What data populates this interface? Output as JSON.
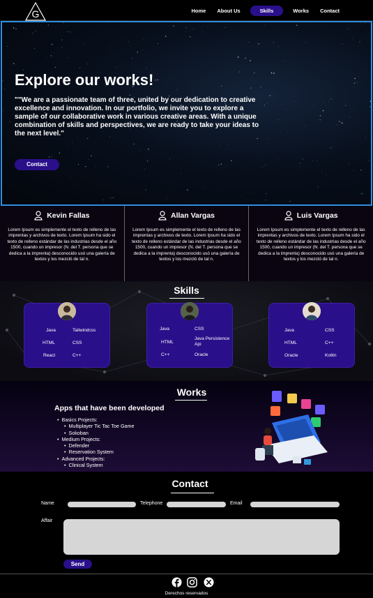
{
  "nav": {
    "logo_letter": "G",
    "links": [
      "Home",
      "About Us",
      "Skills",
      "Works",
      "Contact"
    ],
    "active": "Skills"
  },
  "hero": {
    "title": "Explore our works!",
    "text": "\"\"We are a passionate team of three, united by our dedication to creative excellence and innovation. In our portfolio, we invite you to explore a sample of our collaborative work in various creative areas. With a unique combination of skills and perspectives, we are ready to take your ideas to the next level.\"",
    "button": "Contact"
  },
  "team": [
    {
      "name": "Kevin Fallas",
      "bio": "Lorem Ipsum es simplemente el texto de relleno de las imprentas y archivos de texto. Lorem Ipsum ha sido el texto de relleno estándar de las industrias desde el año 1500, cuando un impresor (N. del T. persona que se dedica a la imprenta) desconocido usó una galería de textos y los mezcló de tal n."
    },
    {
      "name": "Allan Vargas",
      "bio": "Lorem Ipsum es simplemente el texto de relleno de las imprentas y archivos de texto. Lorem Ipsum ha sido el texto de relleno estándar de las industrias desde el año 1500, cuando un impresor (N. del T. persona que se dedica a la imprenta) desconocido usó una galería de textos y los mezcló de tal n."
    },
    {
      "name": "Luis Vargas",
      "bio": "Lorem Ipsum es simplemente el texto de relleno de las imprentas y archivos de texto. Lorem Ipsum ha sido el texto de relleno estándar de las industrias desde el año 1500, cuando un impresor (N. del T. persona que se dedica a la imprenta) desconocido usó una galería de textos y los mezcló de tal n."
    }
  ],
  "skills": {
    "title": "Skills",
    "cards": [
      {
        "left": [
          "Java",
          "HTML",
          "React"
        ],
        "right": [
          "Tailwindcss",
          "CSS",
          "C++"
        ]
      },
      {
        "left": [
          "Java",
          "HTML",
          "C++"
        ],
        "right": [
          "CSS",
          "Java Persistence Api",
          "Oracle"
        ]
      },
      {
        "left": [
          "Java",
          "HTML",
          "Oracle"
        ],
        "right": [
          "CSS",
          "C++",
          "Kotlin"
        ]
      }
    ]
  },
  "works": {
    "title": "Works",
    "subtitle": "Apps that have been developed",
    "groups": [
      {
        "label": "Basics Projects:",
        "items": [
          "Multiplayer Tic Tac Toe Game",
          "Sokoban"
        ]
      },
      {
        "label": "Medium Projects:",
        "items": [
          "Defender",
          "Reservation System"
        ]
      },
      {
        "label": "Advanced Projects:",
        "items": [
          "Clinical System"
        ]
      }
    ]
  },
  "contact": {
    "title": "Contact",
    "name_label": "Name",
    "telephone_label": "Telephone",
    "email_label": "Email",
    "affair_label": "Affair",
    "send": "Send"
  },
  "footer": {
    "text": "Derechos reservados",
    "icons": [
      "facebook-icon",
      "instagram-icon",
      "x-icon"
    ]
  },
  "colors": {
    "accent": "#2a0f8a",
    "hero_border": "#2d8fe0",
    "field": "#d6d6d6"
  }
}
